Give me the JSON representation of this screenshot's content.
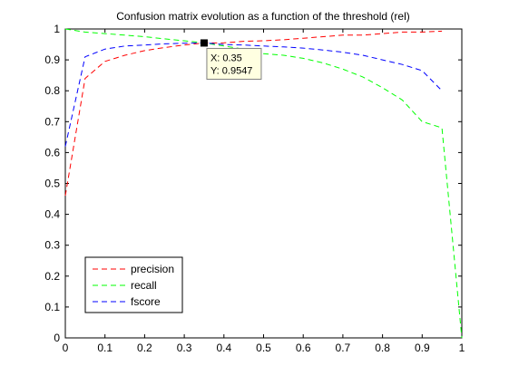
{
  "chart_data": {
    "type": "line",
    "title": "Confusion matrix evolution as a function of the threshold (rel)",
    "xlabel": "",
    "ylabel": "",
    "xlim": [
      0,
      1
    ],
    "ylim": [
      0,
      1
    ],
    "xticks": [
      "0",
      "0.1",
      "0.2",
      "0.3",
      "0.4",
      "0.5",
      "0.6",
      "0.7",
      "0.8",
      "0.9",
      "1"
    ],
    "yticks": [
      "0",
      "0.1",
      "0.2",
      "0.3",
      "0.4",
      "0.5",
      "0.6",
      "0.7",
      "0.8",
      "0.9",
      "1"
    ],
    "grid": false,
    "legend_position": "bottom-left",
    "series": [
      {
        "name": "precision",
        "color": "#ff0000",
        "style": "dashed",
        "x": [
          0,
          0.05,
          0.1,
          0.15,
          0.2,
          0.25,
          0.3,
          0.35,
          0.4,
          0.45,
          0.5,
          0.55,
          0.6,
          0.65,
          0.7,
          0.75,
          0.8,
          0.85,
          0.9,
          0.95
        ],
        "y": [
          0.46,
          0.84,
          0.895,
          0.915,
          0.93,
          0.94,
          0.948,
          0.9547,
          0.955,
          0.96,
          0.962,
          0.965,
          0.97,
          0.975,
          0.98,
          0.98,
          0.985,
          0.99,
          0.99,
          0.993
        ]
      },
      {
        "name": "recall",
        "color": "#00ff00",
        "style": "dashed",
        "x": [
          0,
          0.05,
          0.1,
          0.15,
          0.2,
          0.25,
          0.3,
          0.35,
          0.4,
          0.45,
          0.5,
          0.55,
          0.6,
          0.65,
          0.7,
          0.75,
          0.8,
          0.85,
          0.9,
          0.95,
          1
        ],
        "y": [
          1.0,
          0.99,
          0.985,
          0.98,
          0.975,
          0.968,
          0.962,
          0.955,
          0.945,
          0.935,
          0.92,
          0.915,
          0.905,
          0.89,
          0.87,
          0.845,
          0.81,
          0.77,
          0.7,
          0.68,
          0.0
        ]
      },
      {
        "name": "fscore",
        "color": "#0000ff",
        "style": "dashed",
        "x": [
          0,
          0.05,
          0.1,
          0.15,
          0.2,
          0.25,
          0.3,
          0.35,
          0.4,
          0.45,
          0.5,
          0.55,
          0.6,
          0.65,
          0.7,
          0.75,
          0.8,
          0.85,
          0.9,
          0.95
        ],
        "y": [
          0.62,
          0.91,
          0.935,
          0.945,
          0.948,
          0.952,
          0.954,
          0.955,
          0.95,
          0.948,
          0.945,
          0.942,
          0.938,
          0.932,
          0.925,
          0.915,
          0.9,
          0.885,
          0.865,
          0.8
        ]
      }
    ],
    "datatip": {
      "x": 0.35,
      "y": 0.9547,
      "x_label": "X: 0.35",
      "y_label": "Y: 0.9547"
    }
  }
}
